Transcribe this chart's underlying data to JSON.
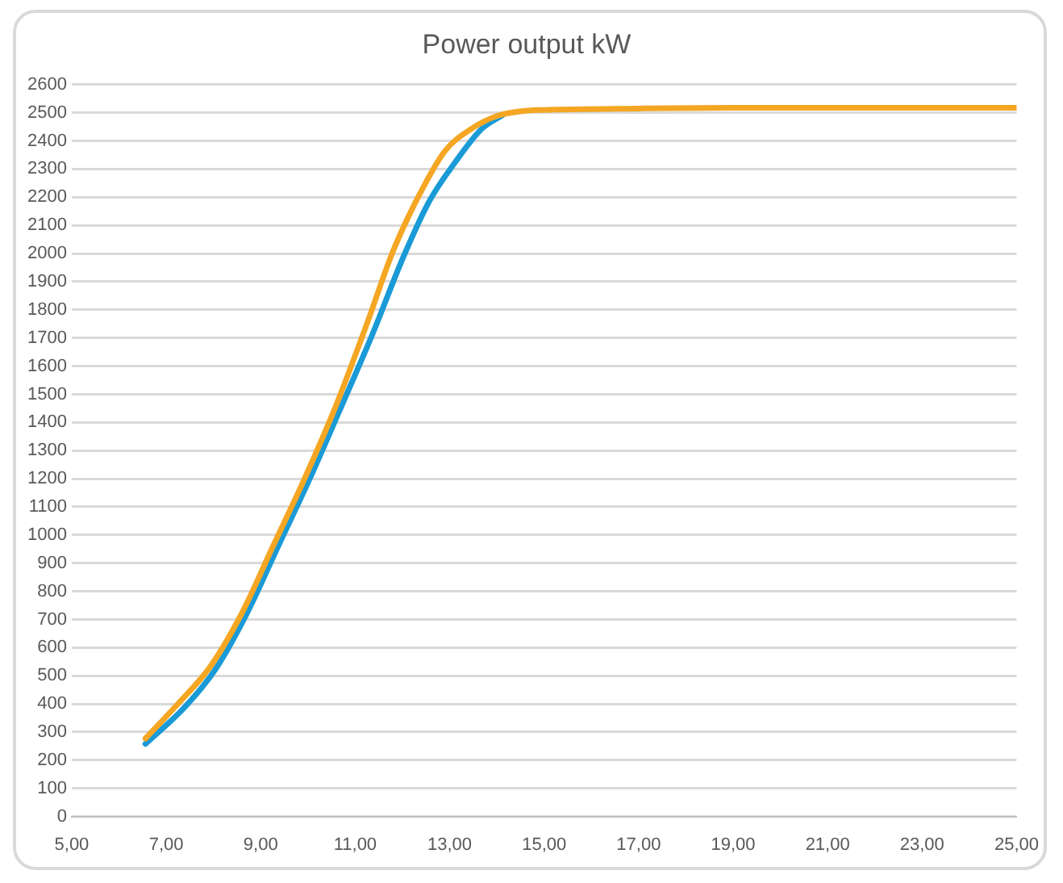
{
  "chart_data": {
    "type": "line",
    "title": "Power output kW",
    "grid": "y",
    "legend": false,
    "marker": "none",
    "line_style": "solid",
    "xlim": [
      5,
      25
    ],
    "xticks": [
      {
        "value": 5,
        "label": "5,00"
      },
      {
        "value": 7,
        "label": "7,00"
      },
      {
        "value": 9,
        "label": "9,00"
      },
      {
        "value": 11,
        "label": "11,00"
      },
      {
        "value": 13,
        "label": "13,00"
      },
      {
        "value": 15,
        "label": "15,00"
      },
      {
        "value": 17,
        "label": "17,00"
      },
      {
        "value": 19,
        "label": "19,00"
      },
      {
        "value": 21,
        "label": "21,00"
      },
      {
        "value": 23,
        "label": "23,00"
      },
      {
        "value": 25,
        "label": "25,00"
      }
    ],
    "ylim": [
      0,
      2600
    ],
    "yticks": [
      0,
      100,
      200,
      300,
      400,
      500,
      600,
      700,
      800,
      900,
      1000,
      1100,
      1200,
      1300,
      1400,
      1500,
      1600,
      1700,
      1800,
      1900,
      2000,
      2100,
      2200,
      2300,
      2400,
      2500,
      2600
    ],
    "series": [
      {
        "color": "#1a9ad6",
        "x": [
          6.56,
          7.38,
          8.05,
          8.71,
          9.37,
          10.03,
          10.7,
          11.36,
          12.02,
          12.57,
          13.12,
          13.68,
          14.12
        ],
        "values": [
          258,
          386,
          525,
          722,
          960,
          1197,
          1454,
          1711,
          1988,
          2186,
          2325,
          2443,
          2492
        ]
      },
      {
        "color": "#f5a623",
        "x": [
          6.56,
          7.28,
          7.94,
          8.6,
          9.26,
          9.92,
          10.58,
          11.25,
          11.8,
          12.35,
          12.9,
          13.46,
          14.01,
          14.67,
          15,
          17,
          19,
          21,
          23,
          25
        ],
        "values": [
          277,
          406,
          534,
          722,
          960,
          1197,
          1454,
          1751,
          2008,
          2206,
          2364,
          2443,
          2489,
          2508,
          2510,
          2515,
          2518,
          2518,
          2518,
          2518
        ]
      }
    ]
  }
}
